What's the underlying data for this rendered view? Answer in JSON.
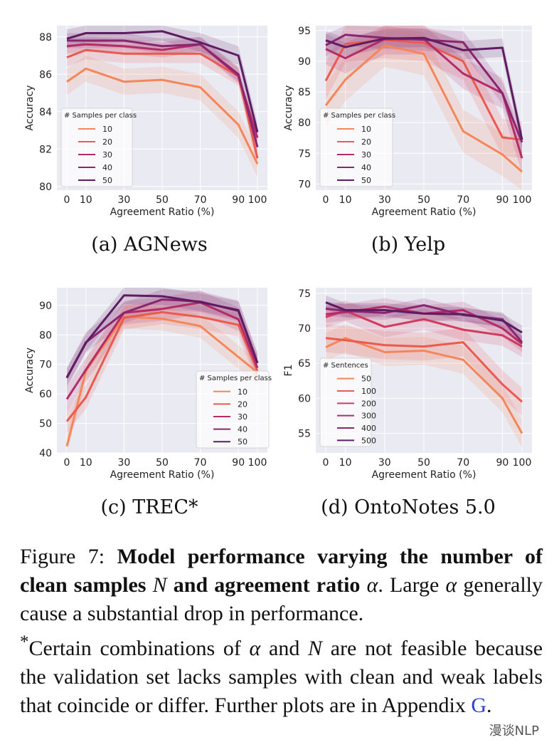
{
  "colors": {
    "plot_bg": "#eaeaf2",
    "grid": "#ffffff",
    "series": [
      "#f4865a",
      "#ea5a4e",
      "#d4395e",
      "#b32c68",
      "#8c2570",
      "#5e1c63"
    ]
  },
  "chart_data": [
    {
      "id": "a",
      "type": "line",
      "caption": "(a) AGNews",
      "xlabel": "Agreement Ratio (%)",
      "ylabel": "Accuracy",
      "x": [
        0,
        10,
        30,
        50,
        70,
        90,
        100
      ],
      "xticks": [
        "0",
        "10",
        "30",
        "50",
        "70",
        "90",
        "100"
      ],
      "ylim": [
        79.8,
        88.6
      ],
      "yticks": [
        80,
        82,
        84,
        86,
        88
      ],
      "legend": {
        "title": "# Samples per class",
        "position": "bottom-left"
      },
      "series": [
        {
          "name": "10",
          "values": [
            85.6,
            86.3,
            85.6,
            85.7,
            85.3,
            83.3,
            81.2
          ],
          "band": 0.7
        },
        {
          "name": "20",
          "values": [
            86.9,
            87.3,
            87.1,
            87.1,
            87.1,
            85.9,
            81.5
          ],
          "band": 0.5
        },
        {
          "name": "30",
          "values": [
            87.5,
            87.6,
            87.5,
            87.3,
            87.6,
            85.9,
            82.6
          ],
          "band": 0.4
        },
        {
          "name": "40",
          "values": [
            87.8,
            87.8,
            87.8,
            87.5,
            87.6,
            86.0,
            82.1
          ],
          "band": 0.4
        },
        {
          "name": "50",
          "values": [
            87.9,
            88.2,
            88.2,
            88.3,
            87.7,
            87.0,
            82.9
          ],
          "band": 0.5
        }
      ]
    },
    {
      "id": "b",
      "type": "line",
      "caption": "(b) Yelp",
      "xlabel": "Agreement Ratio (%)",
      "ylabel": "Accuracy",
      "x": [
        0,
        10,
        30,
        50,
        70,
        90,
        100
      ],
      "xticks": [
        "0",
        "10",
        "30",
        "50",
        "70",
        "90",
        "100"
      ],
      "ylim": [
        69,
        95.8
      ],
      "yticks": [
        70,
        75,
        80,
        85,
        90,
        95
      ],
      "legend": {
        "title": "# Samples per class",
        "position": "bottom-left"
      },
      "series": [
        {
          "name": "10",
          "values": [
            82.8,
            87.0,
            92.6,
            91.2,
            78.6,
            74.8,
            72.0
          ],
          "band": 3.5
        },
        {
          "name": "20",
          "values": [
            86.8,
            92.8,
            93.5,
            93.0,
            90.0,
            77.6,
            77.2
          ],
          "band": 3.0
        },
        {
          "name": "30",
          "values": [
            92.0,
            90.5,
            93.6,
            93.6,
            88.0,
            84.8,
            74.2
          ],
          "band": 2.5
        },
        {
          "name": "40",
          "values": [
            92.6,
            94.3,
            93.8,
            93.5,
            93.1,
            84.8,
            76.8
          ],
          "band": 1.8
        },
        {
          "name": "50",
          "values": [
            93.4,
            92.3,
            93.7,
            93.8,
            91.8,
            92.2,
            77.2
          ],
          "band": 1.5
        }
      ]
    },
    {
      "id": "c",
      "type": "line",
      "caption": "(c) TREC*",
      "xlabel": "Agreement Ratio (%)",
      "ylabel": "Accuracy",
      "x": [
        0,
        10,
        30,
        50,
        70,
        90,
        100
      ],
      "xticks": [
        "0",
        "10",
        "30",
        "50",
        "70",
        "90",
        "100"
      ],
      "ylim": [
        40,
        96
      ],
      "yticks": [
        40,
        50,
        60,
        70,
        80,
        90
      ],
      "legend": {
        "title": "# Samples per class",
        "position": "right"
      },
      "series": [
        {
          "name": "10",
          "values": [
            42.3,
            67.8,
            86.2,
            85.5,
            83.0,
            72.5,
            67.3
          ],
          "band": 4.0
        },
        {
          "name": "20",
          "values": [
            50.7,
            58.9,
            85.8,
            87.7,
            86.1,
            83.4,
            67.7
          ],
          "band": 4.0
        },
        {
          "name": "30",
          "values": [
            58.2,
            68.2,
            87.5,
            88.8,
            91.0,
            85.3,
            68.8
          ],
          "band": 4.0
        },
        {
          "name": "40",
          "values": [
            65.4,
            77.5,
            87.5,
            92.0,
            91.3,
            88.1,
            70.5
          ],
          "band": 3.5
        },
        {
          "name": "50",
          "values": [
            65.6,
            77.3,
            93.4,
            93.1,
            91.1,
            88.4,
            70.5
          ],
          "band": 3.0
        }
      ]
    },
    {
      "id": "d",
      "type": "line",
      "caption": "(d) OntoNotes 5.0",
      "xlabel": "Agreement Ratio (%)",
      "ylabel": "F1",
      "x": [
        0,
        10,
        30,
        50,
        70,
        90,
        100
      ],
      "xticks": [
        "0",
        "10",
        "30",
        "50",
        "70",
        "90",
        "100"
      ],
      "ylim": [
        52.2,
        75.8
      ],
      "yticks": [
        55,
        60,
        65,
        70,
        75
      ],
      "legend": {
        "title": "# Sentences",
        "position": "bottom-left"
      },
      "series": [
        {
          "name": "50",
          "values": [
            67.3,
            68.6,
            66.6,
            66.8,
            65.5,
            60.0,
            55.0
          ],
          "band": 2.0
        },
        {
          "name": "100",
          "values": [
            68.6,
            68.3,
            67.6,
            67.4,
            68.0,
            62.0,
            59.5
          ],
          "band": 2.0
        },
        {
          "name": "200",
          "values": [
            71.6,
            72.5,
            70.2,
            71.3,
            69.8,
            69.0,
            67.4
          ],
          "band": 1.5
        },
        {
          "name": "300",
          "values": [
            72.0,
            72.3,
            73.1,
            72.1,
            72.6,
            70.0,
            67.8
          ],
          "band": 1.2
        },
        {
          "name": "400",
          "values": [
            72.8,
            72.5,
            72.2,
            73.3,
            71.9,
            71.3,
            68.0
          ],
          "band": 1.0
        },
        {
          "name": "500",
          "values": [
            73.7,
            72.6,
            72.6,
            72.1,
            72.0,
            71.1,
            69.4
          ],
          "band": 1.0
        }
      ]
    }
  ],
  "figure_caption": {
    "label": "Figure 7:",
    "bold_1": "Model performance varying the number of clean samples",
    "var_n": "N",
    "bold_2": "and agreement ratio",
    "var_alpha": "α",
    "rest_1": ". Large",
    "rest_2": "generally cause a substantial drop in performance.",
    "footnote_mark": "*",
    "footnote_1": "Certain combinations of",
    "footnote_and": "and",
    "footnote_2": "are not feasible because the validation set lacks samples with clean and weak labels that coincide or differ. Further plots are in",
    "appendix": "Appendix",
    "appendix_ref": "G",
    "end": "."
  },
  "watermark": "漫谈NLP"
}
